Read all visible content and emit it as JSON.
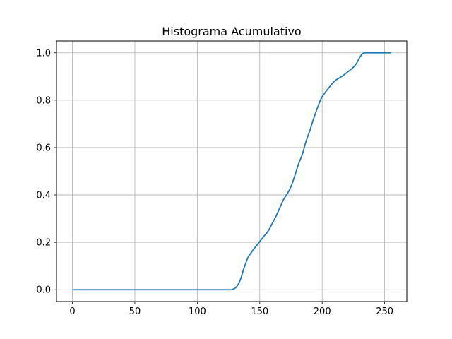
{
  "chart_data": {
    "type": "line",
    "title": "Histograma Acumulativo",
    "xlabel": "",
    "ylabel": "",
    "xlim": [
      -12.75,
      267.75
    ],
    "ylim": [
      -0.05,
      1.05
    ],
    "grid": true,
    "legend": "none",
    "x_ticks": [
      0,
      50,
      100,
      150,
      200,
      250
    ],
    "y_ticks": [
      0.0,
      0.2,
      0.4,
      0.6,
      0.8,
      1.0
    ],
    "x_tick_labels": [
      "0",
      "50",
      "100",
      "150",
      "200",
      "250"
    ],
    "y_tick_labels": [
      "0.0",
      "0.2",
      "0.4",
      "0.6",
      "0.8",
      "1.0"
    ],
    "colors": {
      "series": "#1f77b4",
      "grid": "#b0b0b0",
      "axes": "#000000"
    },
    "series": [
      {
        "x": [
          0,
          20,
          40,
          60,
          80,
          100,
          120,
          127,
          129,
          131,
          133,
          135,
          137,
          139,
          141,
          143,
          145,
          148,
          151,
          154,
          157,
          160,
          163,
          166,
          169,
          172,
          175,
          178,
          181,
          184,
          187,
          190,
          193,
          196,
          199,
          202,
          205,
          208,
          211,
          214,
          217,
          220,
          223,
          226,
          228,
          230,
          232,
          234,
          236,
          240,
          245,
          250,
          255
        ],
        "values": [
          0,
          0,
          0,
          0,
          0,
          0,
          0,
          0.0,
          0.003,
          0.01,
          0.025,
          0.05,
          0.085,
          0.115,
          0.14,
          0.155,
          0.17,
          0.19,
          0.21,
          0.23,
          0.25,
          0.28,
          0.31,
          0.345,
          0.38,
          0.405,
          0.435,
          0.48,
          0.53,
          0.57,
          0.625,
          0.67,
          0.72,
          0.765,
          0.805,
          0.83,
          0.85,
          0.87,
          0.885,
          0.895,
          0.905,
          0.918,
          0.93,
          0.945,
          0.96,
          0.98,
          0.995,
          1.0,
          1.0,
          1.0,
          1.0,
          1.0,
          1.0
        ]
      }
    ]
  }
}
